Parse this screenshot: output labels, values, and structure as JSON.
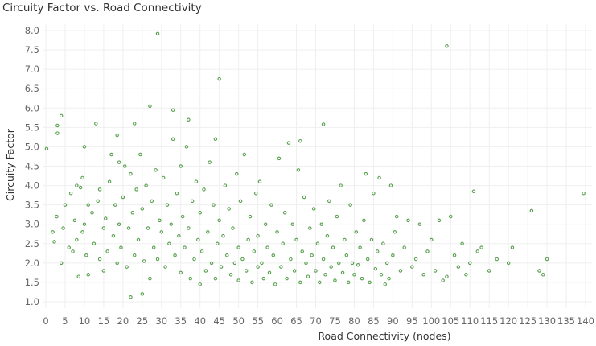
{
  "chart_data": {
    "type": "scatter",
    "title": "Circuity Factor vs. Road Connectivity",
    "xlabel": "Road Connectivity (nodes)",
    "ylabel": "Circuity Factor",
    "xlim": [
      0,
      140
    ],
    "ylim": [
      1.0,
      8.0
    ],
    "x_ticks": [
      0,
      5,
      10,
      15,
      20,
      25,
      30,
      35,
      40,
      45,
      50,
      55,
      60,
      65,
      70,
      75,
      80,
      85,
      90,
      95,
      100,
      105,
      110,
      115,
      120,
      125,
      130,
      135,
      140
    ],
    "y_ticks": [
      "1.0",
      "1.5",
      "2.0",
      "2.5",
      "3.0",
      "3.5",
      "4.0",
      "4.5",
      "5.0",
      "5.5",
      "6.0",
      "6.5",
      "7.0",
      "7.5",
      "8.0"
    ],
    "grid": true,
    "marker_color": "#59a14f",
    "series": [
      {
        "points": [
          [
            0.2,
            4.95
          ],
          [
            1.8,
            2.8
          ],
          [
            2.2,
            2.55
          ],
          [
            2.8,
            3.2
          ],
          [
            3.0,
            5.55
          ],
          [
            3.0,
            5.35
          ],
          [
            4.0,
            5.8
          ],
          [
            4.0,
            2.0
          ],
          [
            4.5,
            2.9
          ],
          [
            5.0,
            3.5
          ],
          [
            6.0,
            2.4
          ],
          [
            6.5,
            3.8
          ],
          [
            7.0,
            2.3
          ],
          [
            7.5,
            3.1
          ],
          [
            8.0,
            2.6
          ],
          [
            8.0,
            4.0
          ],
          [
            8.5,
            1.65
          ],
          [
            9.0,
            3.95
          ],
          [
            9.5,
            2.8
          ],
          [
            9.5,
            4.2
          ],
          [
            10.0,
            5.0
          ],
          [
            10.0,
            3.0
          ],
          [
            10.5,
            2.2
          ],
          [
            11.0,
            1.7
          ],
          [
            11.0,
            3.5
          ],
          [
            12.0,
            3.3
          ],
          [
            12.5,
            2.5
          ],
          [
            13.0,
            5.6
          ],
          [
            13.5,
            3.6
          ],
          [
            14.0,
            2.1
          ],
          [
            14.0,
            3.9
          ],
          [
            15.0,
            2.9
          ],
          [
            15.0,
            1.8
          ],
          [
            15.5,
            3.15
          ],
          [
            16.0,
            2.3
          ],
          [
            16.5,
            4.1
          ],
          [
            17.0,
            4.8
          ],
          [
            17.5,
            2.7
          ],
          [
            18.0,
            3.5
          ],
          [
            18.5,
            5.3
          ],
          [
            18.5,
            2.0
          ],
          [
            19.0,
            4.6
          ],
          [
            19.0,
            3.0
          ],
          [
            19.5,
            2.4
          ],
          [
            20.0,
            3.7
          ],
          [
            20.5,
            4.5
          ],
          [
            21.0,
            1.9
          ],
          [
            21.5,
            2.9
          ],
          [
            22.0,
            4.3
          ],
          [
            22.0,
            1.12
          ],
          [
            22.5,
            3.3
          ],
          [
            23.0,
            2.2
          ],
          [
            23.0,
            5.6
          ],
          [
            23.5,
            3.9
          ],
          [
            24.0,
            2.6
          ],
          [
            24.5,
            4.8
          ],
          [
            25.0,
            1.2
          ],
          [
            25.0,
            3.4
          ],
          [
            25.5,
            2.05
          ],
          [
            26.0,
            4.0
          ],
          [
            26.5,
            2.9
          ],
          [
            27.0,
            6.05
          ],
          [
            27.0,
            1.6
          ],
          [
            27.5,
            3.6
          ],
          [
            28.0,
            2.4
          ],
          [
            28.5,
            4.4
          ],
          [
            29.0,
            7.92
          ],
          [
            29.0,
            2.1
          ],
          [
            29.5,
            3.1
          ],
          [
            30.0,
            2.8
          ],
          [
            30.5,
            4.2
          ],
          [
            31.0,
            1.9
          ],
          [
            31.5,
            3.5
          ],
          [
            32.0,
            2.5
          ],
          [
            32.5,
            3.0
          ],
          [
            33.0,
            5.95
          ],
          [
            33.0,
            5.2
          ],
          [
            33.5,
            2.2
          ],
          [
            34.0,
            3.8
          ],
          [
            34.5,
            2.7
          ],
          [
            35.0,
            1.75
          ],
          [
            35.0,
            4.5
          ],
          [
            35.5,
            3.2
          ],
          [
            36.0,
            2.4
          ],
          [
            36.5,
            5.0
          ],
          [
            37.0,
            5.7
          ],
          [
            37.0,
            2.9
          ],
          [
            37.5,
            1.6
          ],
          [
            38.0,
            3.6
          ],
          [
            38.5,
            2.1
          ],
          [
            39.0,
            4.1
          ],
          [
            39.5,
            2.6
          ],
          [
            40.0,
            1.45
          ],
          [
            40.0,
            3.3
          ],
          [
            40.5,
            2.3
          ],
          [
            41.0,
            3.9
          ],
          [
            41.5,
            1.8
          ],
          [
            42.0,
            2.8
          ],
          [
            42.5,
            4.6
          ],
          [
            43.0,
            2.0
          ],
          [
            43.5,
            3.5
          ],
          [
            44.0,
            1.6
          ],
          [
            44.0,
            5.2
          ],
          [
            44.5,
            2.5
          ],
          [
            45.0,
            6.75
          ],
          [
            45.0,
            3.1
          ],
          [
            45.5,
            1.9
          ],
          [
            46.0,
            2.7
          ],
          [
            46.5,
            4.0
          ],
          [
            47.0,
            2.2
          ],
          [
            47.5,
            3.4
          ],
          [
            48.0,
            1.7
          ],
          [
            48.5,
            2.9
          ],
          [
            49.0,
            2.0
          ],
          [
            49.5,
            4.3
          ],
          [
            50.0,
            2.4
          ],
          [
            50.0,
            1.55
          ],
          [
            50.5,
            3.6
          ],
          [
            51.0,
            2.1
          ],
          [
            51.5,
            4.8
          ],
          [
            52.0,
            1.8
          ],
          [
            52.5,
            2.6
          ],
          [
            53.0,
            3.2
          ],
          [
            53.5,
            1.5
          ],
          [
            54.0,
            2.3
          ],
          [
            54.5,
            3.8
          ],
          [
            55.0,
            1.9
          ],
          [
            55.0,
            2.7
          ],
          [
            55.5,
            4.1
          ],
          [
            56.0,
            2.0
          ],
          [
            56.5,
            1.6
          ],
          [
            57.0,
            3.0
          ],
          [
            57.5,
            2.4
          ],
          [
            58.0,
            1.75
          ],
          [
            58.5,
            3.5
          ],
          [
            59.0,
            2.2
          ],
          [
            59.5,
            1.45
          ],
          [
            60.0,
            2.8
          ],
          [
            60.5,
            4.7
          ],
          [
            61.0,
            1.9
          ],
          [
            61.5,
            2.5
          ],
          [
            62.0,
            3.3
          ],
          [
            62.5,
            1.6
          ],
          [
            63.0,
            5.1
          ],
          [
            63.5,
            2.1
          ],
          [
            64.0,
            3.0
          ],
          [
            64.5,
            1.8
          ],
          [
            65.0,
            2.6
          ],
          [
            65.5,
            4.4
          ],
          [
            66.0,
            5.15
          ],
          [
            66.0,
            1.5
          ],
          [
            66.5,
            2.3
          ],
          [
            67.0,
            3.7
          ],
          [
            67.5,
            2.0
          ],
          [
            68.0,
            1.65
          ],
          [
            68.5,
            2.9
          ],
          [
            69.0,
            2.2
          ],
          [
            69.5,
            3.4
          ],
          [
            70.0,
            1.8
          ],
          [
            70.5,
            2.5
          ],
          [
            71.0,
            1.5
          ],
          [
            71.5,
            3.0
          ],
          [
            72.0,
            5.58
          ],
          [
            72.0,
            2.1
          ],
          [
            72.5,
            1.7
          ],
          [
            73.0,
            2.7
          ],
          [
            73.5,
            3.6
          ],
          [
            74.0,
            1.9
          ],
          [
            74.5,
            2.4
          ],
          [
            75.0,
            1.55
          ],
          [
            75.5,
            3.2
          ],
          [
            76.0,
            2.0
          ],
          [
            76.5,
            4.0
          ],
          [
            77.0,
            1.75
          ],
          [
            77.5,
            2.6
          ],
          [
            78.0,
            2.2
          ],
          [
            78.5,
            1.5
          ],
          [
            79.0,
            3.5
          ],
          [
            79.5,
            2.0
          ],
          [
            80.0,
            1.7
          ],
          [
            80.5,
            2.8
          ],
          [
            81.0,
            1.95
          ],
          [
            81.5,
            2.4
          ],
          [
            82.0,
            1.6
          ],
          [
            82.5,
            3.1
          ],
          [
            83.0,
            4.3
          ],
          [
            83.5,
            2.1
          ],
          [
            84.0,
            1.5
          ],
          [
            84.5,
            2.6
          ],
          [
            85.0,
            3.8
          ],
          [
            85.5,
            1.85
          ],
          [
            86.0,
            2.3
          ],
          [
            86.5,
            4.2
          ],
          [
            87.0,
            1.7
          ],
          [
            87.5,
            2.5
          ],
          [
            88.0,
            1.45
          ],
          [
            88.5,
            2.0
          ],
          [
            89.0,
            1.6
          ],
          [
            89.5,
            4.0
          ],
          [
            90.0,
            2.2
          ],
          [
            90.5,
            2.8
          ],
          [
            91.0,
            3.2
          ],
          [
            92.0,
            1.8
          ],
          [
            93.0,
            2.4
          ],
          [
            94.0,
            3.1
          ],
          [
            95.0,
            1.9
          ],
          [
            96.0,
            2.1
          ],
          [
            97.0,
            3.0
          ],
          [
            98.0,
            1.7
          ],
          [
            99.0,
            2.3
          ],
          [
            100.0,
            2.6
          ],
          [
            101.0,
            1.8
          ],
          [
            102.0,
            3.1
          ],
          [
            103.0,
            1.55
          ],
          [
            104.0,
            7.6
          ],
          [
            104.0,
            1.65
          ],
          [
            105.0,
            3.2
          ],
          [
            106.0,
            2.2
          ],
          [
            107.0,
            1.9
          ],
          [
            108.0,
            2.5
          ],
          [
            109.0,
            1.7
          ],
          [
            110.0,
            2.0
          ],
          [
            111.0,
            3.85
          ],
          [
            112.0,
            2.3
          ],
          [
            113.0,
            2.4
          ],
          [
            115.0,
            1.8
          ],
          [
            117.0,
            2.1
          ],
          [
            120.0,
            2.0
          ],
          [
            121.0,
            2.4
          ],
          [
            126.0,
            3.35
          ],
          [
            128.0,
            1.8
          ],
          [
            129.0,
            1.7
          ],
          [
            130.0,
            2.1
          ],
          [
            139.5,
            3.8
          ]
        ]
      }
    ]
  }
}
